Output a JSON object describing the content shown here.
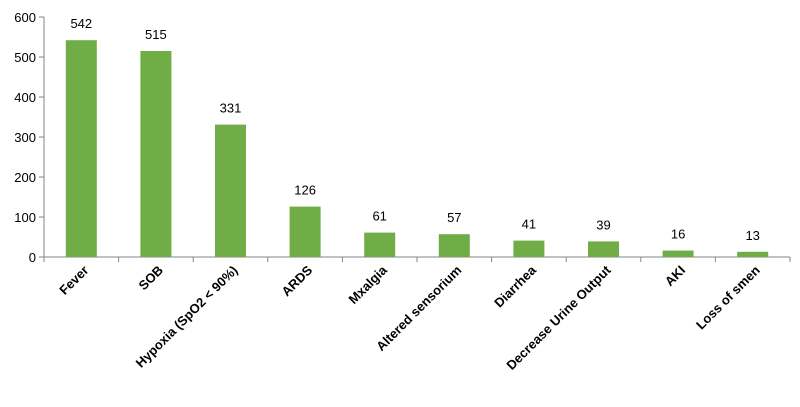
{
  "chart_data": {
    "type": "bar",
    "categories": [
      "Fever",
      "SOB",
      "Hypoxia (SpO2 < 90%)",
      "ARDS",
      "Mxalgia",
      "Altered sensorium",
      "Diarrhea",
      "Decrease Urine Output",
      "AKI",
      "Loss of smen"
    ],
    "values": [
      542,
      515,
      331,
      126,
      61,
      57,
      41,
      39,
      16,
      13
    ],
    "data_labels": [
      "542",
      "515",
      "331",
      "126",
      "61",
      "57",
      "41",
      "39",
      "16",
      "13"
    ],
    "yticks": [
      "0",
      "100",
      "200",
      "300",
      "400",
      "500",
      "600"
    ],
    "ylim": [
      0,
      600
    ],
    "grid": false,
    "legend": "none",
    "bar_color": "#70AD47"
  }
}
